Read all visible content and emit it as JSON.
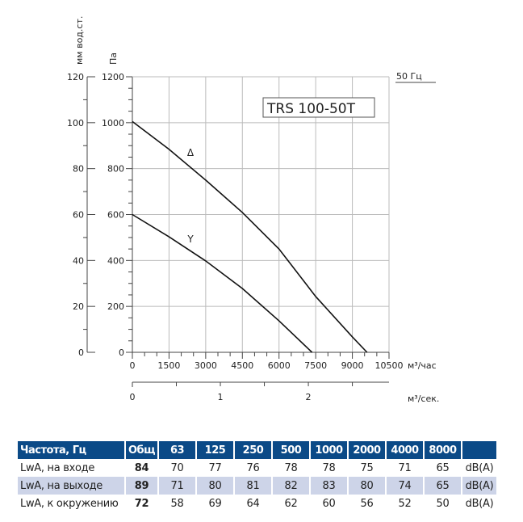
{
  "chart_data": {
    "type": "line",
    "title": "TRS 100-50T",
    "frequency_label": "50 Гц",
    "xlabel": "м³/час",
    "x2label": "м³/сек.",
    "ylabel": "Па",
    "y2label": "мм вод.ст.",
    "xlim": [
      0,
      10500
    ],
    "ylim": [
      0,
      1200
    ],
    "y2lim": [
      0,
      120
    ],
    "x2lim": [
      0,
      2.9167
    ],
    "xticks": [
      0,
      1500,
      3000,
      4500,
      6000,
      7500,
      9000,
      10500
    ],
    "yticks": [
      0,
      200,
      400,
      600,
      800,
      1000,
      1200
    ],
    "y2ticks": [
      0,
      20,
      40,
      60,
      80,
      100,
      120
    ],
    "x2ticks": [
      0,
      1,
      2
    ],
    "grid": true,
    "series": [
      {
        "name": "Δ",
        "x": [
          0,
          1500,
          3000,
          4500,
          6000,
          7500,
          9000,
          9600
        ],
        "y": [
          1005,
          884,
          750,
          609,
          450,
          243,
          67,
          0
        ]
      },
      {
        "name": "Y",
        "x": [
          0,
          1500,
          3000,
          4500,
          6000,
          7350
        ],
        "y": [
          600,
          503,
          398,
          278,
          137,
          0
        ]
      }
    ]
  },
  "table": {
    "headers": [
      "Частота, Гц",
      "Общ",
      "63",
      "125",
      "250",
      "500",
      "1000",
      "2000",
      "4000",
      "8000",
      ""
    ],
    "rows": [
      {
        "label": "LwA, на входе",
        "total": "84",
        "values": [
          "70",
          "77",
          "76",
          "78",
          "78",
          "75",
          "71",
          "65"
        ],
        "unit": "dB(A)"
      },
      {
        "label": "LwA, на выходе",
        "total": "89",
        "values": [
          "71",
          "80",
          "81",
          "82",
          "83",
          "80",
          "74",
          "65"
        ],
        "unit": "dB(A)"
      },
      {
        "label": "LwA, к окружению",
        "total": "72",
        "values": [
          "58",
          "69",
          "64",
          "62",
          "60",
          "56",
          "52",
          "50"
        ],
        "unit": "dB(A)"
      }
    ]
  }
}
